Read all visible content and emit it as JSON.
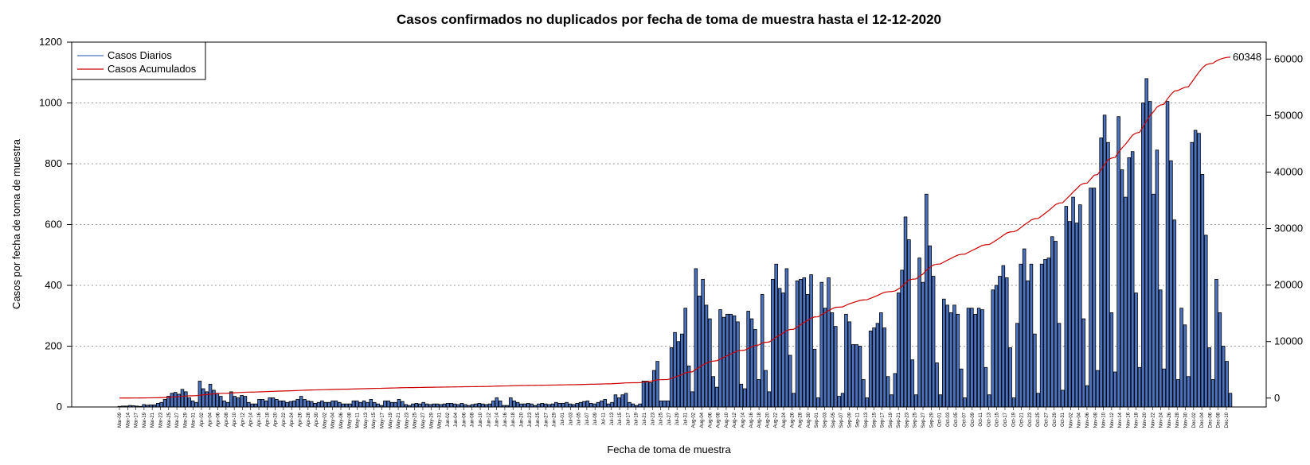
{
  "chart_data": {
    "type": "bar",
    "title": "Casos confirmados no duplicados por fecha de toma de muestra hasta el 12-12-2020",
    "xlabel": "Fecha de toma de muestra",
    "ylabel": "Casos por fecha de toma de muestra",
    "ylim": [
      0,
      1200
    ],
    "y_ticks": [
      0,
      200,
      400,
      600,
      800,
      1000,
      1200
    ],
    "y2lim": [
      -1575,
      63000
    ],
    "y2_ticks": [
      0,
      10000,
      20000,
      30000,
      40000,
      50000,
      60000
    ],
    "grid": "horizontal dotted at left-axis ticks",
    "legend_position": "top-left",
    "legend": [
      "Casos Diarios",
      "Casos Acumulados"
    ],
    "colors": {
      "bars": "#4a72c0",
      "cumulative": "#cc0000",
      "legend_daily": "#4a72c0"
    },
    "end_label": "60348",
    "x_tick_labels": [
      "Mar-09",
      "Mar-14",
      "Mar-17",
      "Mar-19",
      "Mar-21",
      "Mar-23",
      "Mar-25",
      "Mar-27",
      "Mar-29",
      "Mar-31",
      "Apr-02",
      "Apr-04",
      "Apr-06",
      "Apr-08",
      "Apr-10",
      "Apr-12",
      "Apr-14",
      "Apr-16",
      "Apr-18",
      "Apr-20",
      "Apr-22",
      "Apr-24",
      "Apr-26",
      "Apr-28",
      "Apr-30",
      "May-02",
      "May-04",
      "May-06",
      "May-08",
      "May-11",
      "May-13",
      "May-15",
      "May-17",
      "May-19",
      "May-21",
      "May-23",
      "May-25",
      "May-27",
      "May-29",
      "May-31",
      "Jun-02",
      "Jun-04",
      "Jun-06",
      "Jun-08",
      "Jun-10",
      "Jun-12",
      "Jun-14",
      "Jun-16",
      "Jun-18",
      "Jun-20",
      "Jun-23",
      "Jun-25",
      "Jun-27",
      "Jun-29",
      "Jul-01",
      "Jul-03",
      "Jul-05",
      "Jul-07",
      "Jul-09",
      "Jul-11",
      "Jul-13",
      "Jul-15",
      "Jul-17",
      "Jul-19",
      "Jul-21",
      "Jul-23",
      "Jul-25",
      "Jul-27",
      "Jul-29",
      "Jul-31",
      "Aug-02",
      "Aug-04",
      "Aug-06",
      "Aug-08",
      "Aug-10",
      "Aug-12",
      "Aug-14",
      "Aug-16",
      "Aug-18",
      "Aug-20",
      "Aug-22",
      "Aug-24",
      "Aug-26",
      "Aug-28",
      "Aug-30",
      "Sep-01",
      "Sep-03",
      "Sep-05",
      "Sep-07",
      "Sep-09",
      "Sep-11",
      "Sep-13",
      "Sep-15",
      "Sep-17",
      "Sep-19",
      "Sep-21",
      "Sep-23",
      "Sep-25",
      "Sep-27",
      "Sep-29",
      "Oct-01",
      "Oct-03",
      "Oct-05",
      "Oct-07",
      "Oct-09",
      "Oct-11",
      "Oct-13",
      "Oct-15",
      "Oct-17",
      "Oct-19",
      "Oct-21",
      "Oct-23",
      "Oct-25",
      "Oct-27",
      "Oct-29",
      "Oct-31",
      "Nov-02",
      "Nov-04",
      "Nov-06",
      "Nov-08",
      "Nov-10",
      "Nov-12",
      "Nov-14",
      "Nov-16",
      "Nov-18",
      "Nov-20",
      "Nov-22",
      "Nov-24",
      "Nov-26",
      "Nov-28",
      "Nov-30",
      "Dec-02",
      "Dec-04",
      "Dec-06",
      "Dec-08",
      "Dec-10"
    ],
    "daily_values": [
      2,
      3,
      3,
      5,
      4,
      3,
      2,
      8,
      6,
      7,
      7,
      12,
      15,
      25,
      35,
      45,
      48,
      42,
      58,
      50,
      30,
      20,
      15,
      85,
      60,
      50,
      75,
      55,
      45,
      35,
      20,
      15,
      50,
      35,
      30,
      38,
      35,
      15,
      10,
      10,
      25,
      25,
      20,
      30,
      30,
      25,
      20,
      20,
      15,
      18,
      20,
      25,
      35,
      25,
      20,
      18,
      12,
      15,
      20,
      15,
      15,
      20,
      20,
      15,
      10,
      10,
      10,
      20,
      20,
      15,
      20,
      15,
      25,
      15,
      10,
      5,
      20,
      20,
      15,
      15,
      25,
      18,
      8,
      5,
      10,
      12,
      10,
      15,
      10,
      8,
      10,
      10,
      8,
      10,
      12,
      12,
      10,
      8,
      12,
      8,
      5,
      8,
      10,
      12,
      10,
      8,
      10,
      20,
      30,
      20,
      5,
      5,
      30,
      20,
      15,
      10,
      10,
      12,
      10,
      5,
      10,
      12,
      10,
      8,
      10,
      15,
      12,
      12,
      15,
      10,
      8,
      12,
      15,
      18,
      20,
      12,
      10,
      15,
      20,
      25,
      10,
      15,
      40,
      30,
      40,
      45,
      15,
      10,
      5,
      10,
      85,
      85,
      80,
      120,
      150,
      20,
      20,
      20,
      195,
      245,
      215,
      240,
      325,
      135,
      50,
      455,
      365,
      420,
      335,
      290,
      100,
      65,
      320,
      295,
      305,
      305,
      300,
      280,
      75,
      60,
      315,
      290,
      255,
      90,
      370,
      120,
      50,
      420,
      470,
      390,
      375,
      455,
      170,
      45,
      415,
      420,
      425,
      370,
      435,
      190,
      30,
      410,
      325,
      425,
      310,
      265,
      35,
      45,
      305,
      280,
      205,
      205,
      200,
      90,
      30,
      250,
      260,
      275,
      310,
      260,
      100,
      40,
      110,
      375,
      450,
      625,
      550,
      155,
      40,
      490,
      410,
      700,
      530,
      430,
      145,
      40,
      355,
      335,
      310,
      335,
      305,
      125,
      30,
      325,
      325,
      305,
      325,
      320,
      130,
      40,
      385,
      400,
      430,
      465,
      425,
      195,
      30,
      275,
      470,
      520,
      415,
      470,
      240,
      45,
      470,
      485,
      490,
      560,
      545,
      275,
      55,
      660,
      610,
      690,
      605,
      665,
      290,
      70,
      720,
      720,
      120,
      885,
      960,
      870,
      310,
      115,
      955,
      780,
      690,
      820,
      840,
      375,
      130,
      1000,
      1080,
      1005,
      700,
      845,
      385,
      125,
      1005,
      810,
      615,
      90,
      325,
      270,
      100,
      870,
      910,
      900,
      765,
      565,
      195,
      90,
      420,
      310,
      200,
      150,
      45
    ],
    "cumulative_final": 60348
  }
}
